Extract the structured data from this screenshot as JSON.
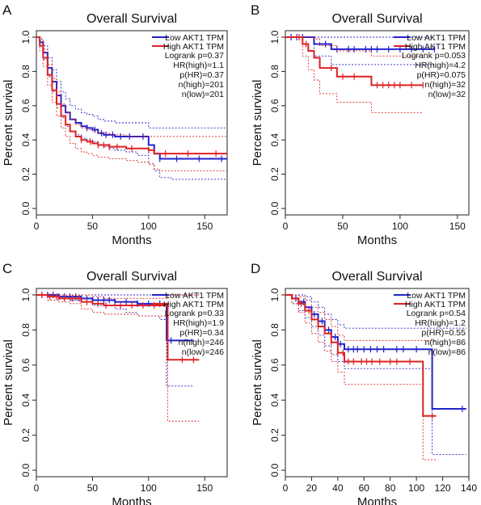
{
  "chart_data": [
    {
      "panel": "A",
      "type": "line",
      "title": "Overall Survival",
      "xlabel": "Months",
      "ylabel": "Percent survival",
      "xlim": [
        0,
        170
      ],
      "ylim": [
        0,
        1.0
      ],
      "xticks": [
        0,
        50,
        100,
        150
      ],
      "yticks": [
        0.0,
        0.2,
        0.4,
        0.6,
        0.8,
        1.0
      ],
      "legend_position": "top-right",
      "stats": [
        "Logrank p=0.37",
        "HR(high)=1.1",
        "p(HR)=0.37",
        "n(high)=201",
        "n(low)=201"
      ],
      "series": [
        {
          "name": "Low AKT1 TPM",
          "color": "#2222cc",
          "x": [
            0,
            3,
            6,
            10,
            14,
            18,
            22,
            26,
            30,
            35,
            40,
            45,
            50,
            55,
            60,
            65,
            70,
            80,
            90,
            100,
            105,
            110,
            120,
            140,
            170
          ],
          "y": [
            1.0,
            0.97,
            0.91,
            0.82,
            0.74,
            0.66,
            0.6,
            0.56,
            0.52,
            0.5,
            0.48,
            0.47,
            0.46,
            0.44,
            0.43,
            0.43,
            0.42,
            0.42,
            0.42,
            0.37,
            0.32,
            0.29,
            0.29,
            0.29,
            0.29
          ],
          "censor_x": [
            45,
            52,
            58,
            62,
            68,
            75,
            83,
            95,
            110,
            125,
            145,
            165
          ],
          "ci_upper": [
            1.0,
            0.99,
            0.95,
            0.88,
            0.81,
            0.74,
            0.68,
            0.64,
            0.6,
            0.58,
            0.56,
            0.55,
            0.54,
            0.52,
            0.51,
            0.51,
            0.5,
            0.5,
            0.5,
            0.47,
            0.47,
            0.47,
            0.47,
            0.47,
            0.47
          ],
          "ci_lower": [
            1.0,
            0.95,
            0.87,
            0.77,
            0.68,
            0.59,
            0.53,
            0.48,
            0.45,
            0.43,
            0.41,
            0.4,
            0.39,
            0.37,
            0.36,
            0.35,
            0.34,
            0.33,
            0.31,
            0.26,
            0.22,
            0.18,
            0.17,
            0.17,
            0.17
          ]
        },
        {
          "name": "High AKT1 TPM",
          "color": "#dd2222",
          "x": [
            0,
            3,
            6,
            10,
            14,
            18,
            22,
            26,
            30,
            35,
            40,
            45,
            50,
            55,
            60,
            65,
            70,
            80,
            90,
            100,
            105,
            110,
            120,
            140,
            170
          ],
          "y": [
            1.0,
            0.95,
            0.88,
            0.78,
            0.69,
            0.61,
            0.54,
            0.49,
            0.45,
            0.42,
            0.4,
            0.39,
            0.38,
            0.37,
            0.37,
            0.36,
            0.36,
            0.35,
            0.35,
            0.34,
            0.32,
            0.32,
            0.32,
            0.32,
            0.32
          ],
          "censor_x": [
            40,
            48,
            55,
            60,
            65,
            72,
            85,
            100,
            115,
            135,
            160
          ],
          "ci_upper": [
            1.0,
            0.98,
            0.93,
            0.84,
            0.76,
            0.68,
            0.61,
            0.56,
            0.52,
            0.49,
            0.47,
            0.46,
            0.45,
            0.44,
            0.44,
            0.43,
            0.43,
            0.42,
            0.42,
            0.42,
            0.42,
            0.42,
            0.42,
            0.42,
            0.42
          ],
          "ci_lower": [
            1.0,
            0.92,
            0.83,
            0.72,
            0.62,
            0.54,
            0.47,
            0.42,
            0.38,
            0.35,
            0.33,
            0.32,
            0.31,
            0.3,
            0.3,
            0.29,
            0.29,
            0.28,
            0.27,
            0.26,
            0.23,
            0.22,
            0.22,
            0.22,
            0.22
          ]
        }
      ]
    },
    {
      "panel": "B",
      "type": "line",
      "title": "Overall Survival",
      "xlabel": "Months",
      "ylabel": "Percent survival",
      "xlim": [
        0,
        160
      ],
      "ylim": [
        0,
        1.0
      ],
      "xticks": [
        0,
        50,
        100,
        150
      ],
      "yticks": [
        0.0,
        0.2,
        0.4,
        0.6,
        0.8,
        1.0
      ],
      "legend_position": "top-right",
      "stats": [
        "Logrank p=0.053",
        "HR(high)=4.2",
        "p(HR)=0.075",
        "n(high)=32",
        "n(low)=32"
      ],
      "series": [
        {
          "name": "Low AKT1 TPM",
          "color": "#2222cc",
          "x": [
            0,
            20,
            25,
            30,
            35,
            40,
            50,
            60,
            70,
            80,
            100,
            120,
            130
          ],
          "y": [
            1.0,
            1.0,
            0.96,
            0.96,
            0.96,
            0.93,
            0.93,
            0.93,
            0.93,
            0.93,
            0.93,
            0.93,
            0.93
          ],
          "censor_x": [
            5,
            10,
            15,
            35,
            45,
            55,
            60,
            70,
            75,
            80,
            90,
            100,
            110,
            120,
            130
          ],
          "ci_upper": [
            1.0,
            1.0,
            1.0,
            1.0,
            1.0,
            1.0,
            1.0,
            1.0,
            1.0,
            1.0,
            1.0,
            1.0,
            1.0
          ],
          "ci_lower": [
            1.0,
            1.0,
            0.89,
            0.89,
            0.89,
            0.84,
            0.84,
            0.84,
            0.84,
            0.84,
            0.84,
            0.84,
            0.84
          ]
        },
        {
          "name": "High AKT1 TPM",
          "color": "#dd2222",
          "x": [
            0,
            10,
            15,
            20,
            25,
            30,
            35,
            45,
            55,
            75,
            100,
            120
          ],
          "y": [
            1.0,
            1.0,
            0.96,
            0.92,
            0.88,
            0.82,
            0.82,
            0.77,
            0.77,
            0.72,
            0.72,
            0.72
          ],
          "censor_x": [
            12,
            18,
            40,
            50,
            60,
            80,
            85,
            90,
            95,
            100,
            110,
            120
          ],
          "ci_upper": [
            1.0,
            1.0,
            1.0,
            1.0,
            0.99,
            0.95,
            0.95,
            0.92,
            0.92,
            0.89,
            0.89,
            0.89
          ],
          "ci_lower": [
            1.0,
            1.0,
            0.89,
            0.81,
            0.75,
            0.67,
            0.67,
            0.62,
            0.62,
            0.56,
            0.56,
            0.56
          ]
        }
      ]
    },
    {
      "panel": "C",
      "type": "line",
      "title": "Overall Survival",
      "xlabel": "Months",
      "ylabel": "Percent survival",
      "xlim": [
        0,
        170
      ],
      "ylim": [
        0,
        1.0
      ],
      "xticks": [
        0,
        50,
        100,
        150
      ],
      "yticks": [
        0.0,
        0.2,
        0.4,
        0.6,
        0.8,
        1.0
      ],
      "legend_position": "top-right",
      "stats": [
        "Logrank p=0.33",
        "HR(high)=1.9",
        "p(HR)=0.34",
        "n(high)=246",
        "n(low)=246"
      ],
      "series": [
        {
          "name": "Low AKT1 TPM",
          "color": "#2222cc",
          "x": [
            0,
            10,
            20,
            30,
            40,
            50,
            60,
            70,
            80,
            90,
            100,
            110,
            116,
            125,
            140
          ],
          "y": [
            1.0,
            1.0,
            0.99,
            0.99,
            0.98,
            0.97,
            0.97,
            0.96,
            0.96,
            0.95,
            0.95,
            0.95,
            0.74,
            0.74,
            0.74
          ],
          "censor_x": [
            5,
            10,
            15,
            20,
            25,
            30,
            35,
            40,
            45,
            50,
            55,
            60,
            65,
            70,
            80,
            90,
            100,
            110,
            120
          ],
          "ci_upper": [
            1.0,
            1.0,
            1.0,
            1.0,
            1.0,
            1.0,
            1.0,
            1.0,
            1.0,
            1.0,
            1.0,
            1.0,
            1.0,
            1.0,
            1.0
          ],
          "ci_lower": [
            1.0,
            1.0,
            0.98,
            0.97,
            0.96,
            0.94,
            0.94,
            0.92,
            0.9,
            0.88,
            0.88,
            0.86,
            0.48,
            0.48,
            0.48
          ]
        },
        {
          "name": "High AKT1 TPM",
          "color": "#dd2222",
          "x": [
            0,
            10,
            20,
            30,
            40,
            50,
            60,
            70,
            80,
            90,
            100,
            110,
            117,
            130,
            145
          ],
          "y": [
            1.0,
            0.99,
            0.98,
            0.98,
            0.96,
            0.95,
            0.94,
            0.94,
            0.94,
            0.94,
            0.94,
            0.94,
            0.63,
            0.63,
            0.63
          ],
          "censor_x": [
            5,
            12,
            18,
            25,
            32,
            38,
            45,
            55,
            62,
            75,
            85,
            95,
            105,
            130,
            140
          ],
          "ci_upper": [
            1.0,
            1.0,
            1.0,
            1.0,
            1.0,
            0.99,
            0.98,
            0.98,
            0.98,
            0.98,
            0.98,
            0.98,
            1.0,
            1.0,
            1.0
          ],
          "ci_lower": [
            1.0,
            0.97,
            0.96,
            0.95,
            0.92,
            0.9,
            0.89,
            0.89,
            0.89,
            0.88,
            0.88,
            0.88,
            0.28,
            0.28,
            0.28
          ]
        }
      ]
    },
    {
      "panel": "D",
      "type": "line",
      "title": "Overall Survival",
      "xlabel": "Months",
      "ylabel": "Percent survival",
      "xlim": [
        0,
        140
      ],
      "ylim": [
        0,
        1.0
      ],
      "xticks": [
        0,
        20,
        40,
        60,
        80,
        100,
        120,
        140
      ],
      "yticks": [
        0.0,
        0.2,
        0.4,
        0.6,
        0.8,
        1.0
      ],
      "legend_position": "top-right",
      "stats": [
        "Logrank p=0.54",
        "HR(high)=1.2",
        "p(HR)=0.55",
        "n(high)=86",
        "n(low)=86"
      ],
      "series": [
        {
          "name": "Low AKT1 TPM",
          "color": "#2222cc",
          "x": [
            0,
            5,
            10,
            15,
            20,
            25,
            30,
            35,
            40,
            45,
            50,
            80,
            110,
            112,
            138
          ],
          "y": [
            1.0,
            0.98,
            0.96,
            0.93,
            0.89,
            0.85,
            0.8,
            0.76,
            0.72,
            0.69,
            0.69,
            0.69,
            0.69,
            0.35,
            0.35
          ],
          "censor_x": [
            8,
            14,
            22,
            28,
            33,
            38,
            42,
            48,
            52,
            55,
            60,
            65,
            70,
            75,
            85,
            90,
            100,
            135
          ],
          "ci_upper": [
            1.0,
            1.0,
            1.0,
            0.99,
            0.96,
            0.93,
            0.89,
            0.86,
            0.83,
            0.81,
            0.81,
            0.81,
            0.81,
            0.81,
            0.81
          ],
          "ci_lower": [
            1.0,
            0.95,
            0.91,
            0.87,
            0.82,
            0.77,
            0.71,
            0.66,
            0.62,
            0.58,
            0.58,
            0.58,
            0.58,
            0.09,
            0.09
          ]
        },
        {
          "name": "High AKT1 TPM",
          "color": "#dd2222",
          "x": [
            0,
            5,
            10,
            15,
            20,
            25,
            30,
            35,
            40,
            45,
            50,
            80,
            103,
            105,
            115
          ],
          "y": [
            1.0,
            0.98,
            0.95,
            0.91,
            0.86,
            0.82,
            0.78,
            0.73,
            0.67,
            0.62,
            0.62,
            0.62,
            0.62,
            0.31,
            0.31
          ],
          "censor_x": [
            12,
            18,
            25,
            35,
            40,
            44,
            48,
            52,
            58,
            62,
            66,
            72,
            80,
            85,
            95,
            112
          ],
          "ci_upper": [
            1.0,
            1.0,
            0.99,
            0.97,
            0.93,
            0.9,
            0.86,
            0.82,
            0.77,
            0.74,
            0.74,
            0.74,
            0.74,
            0.74,
            0.74
          ],
          "ci_lower": [
            1.0,
            0.95,
            0.9,
            0.84,
            0.78,
            0.73,
            0.68,
            0.62,
            0.56,
            0.49,
            0.49,
            0.49,
            0.49,
            0.06,
            0.06
          ]
        }
      ]
    }
  ]
}
